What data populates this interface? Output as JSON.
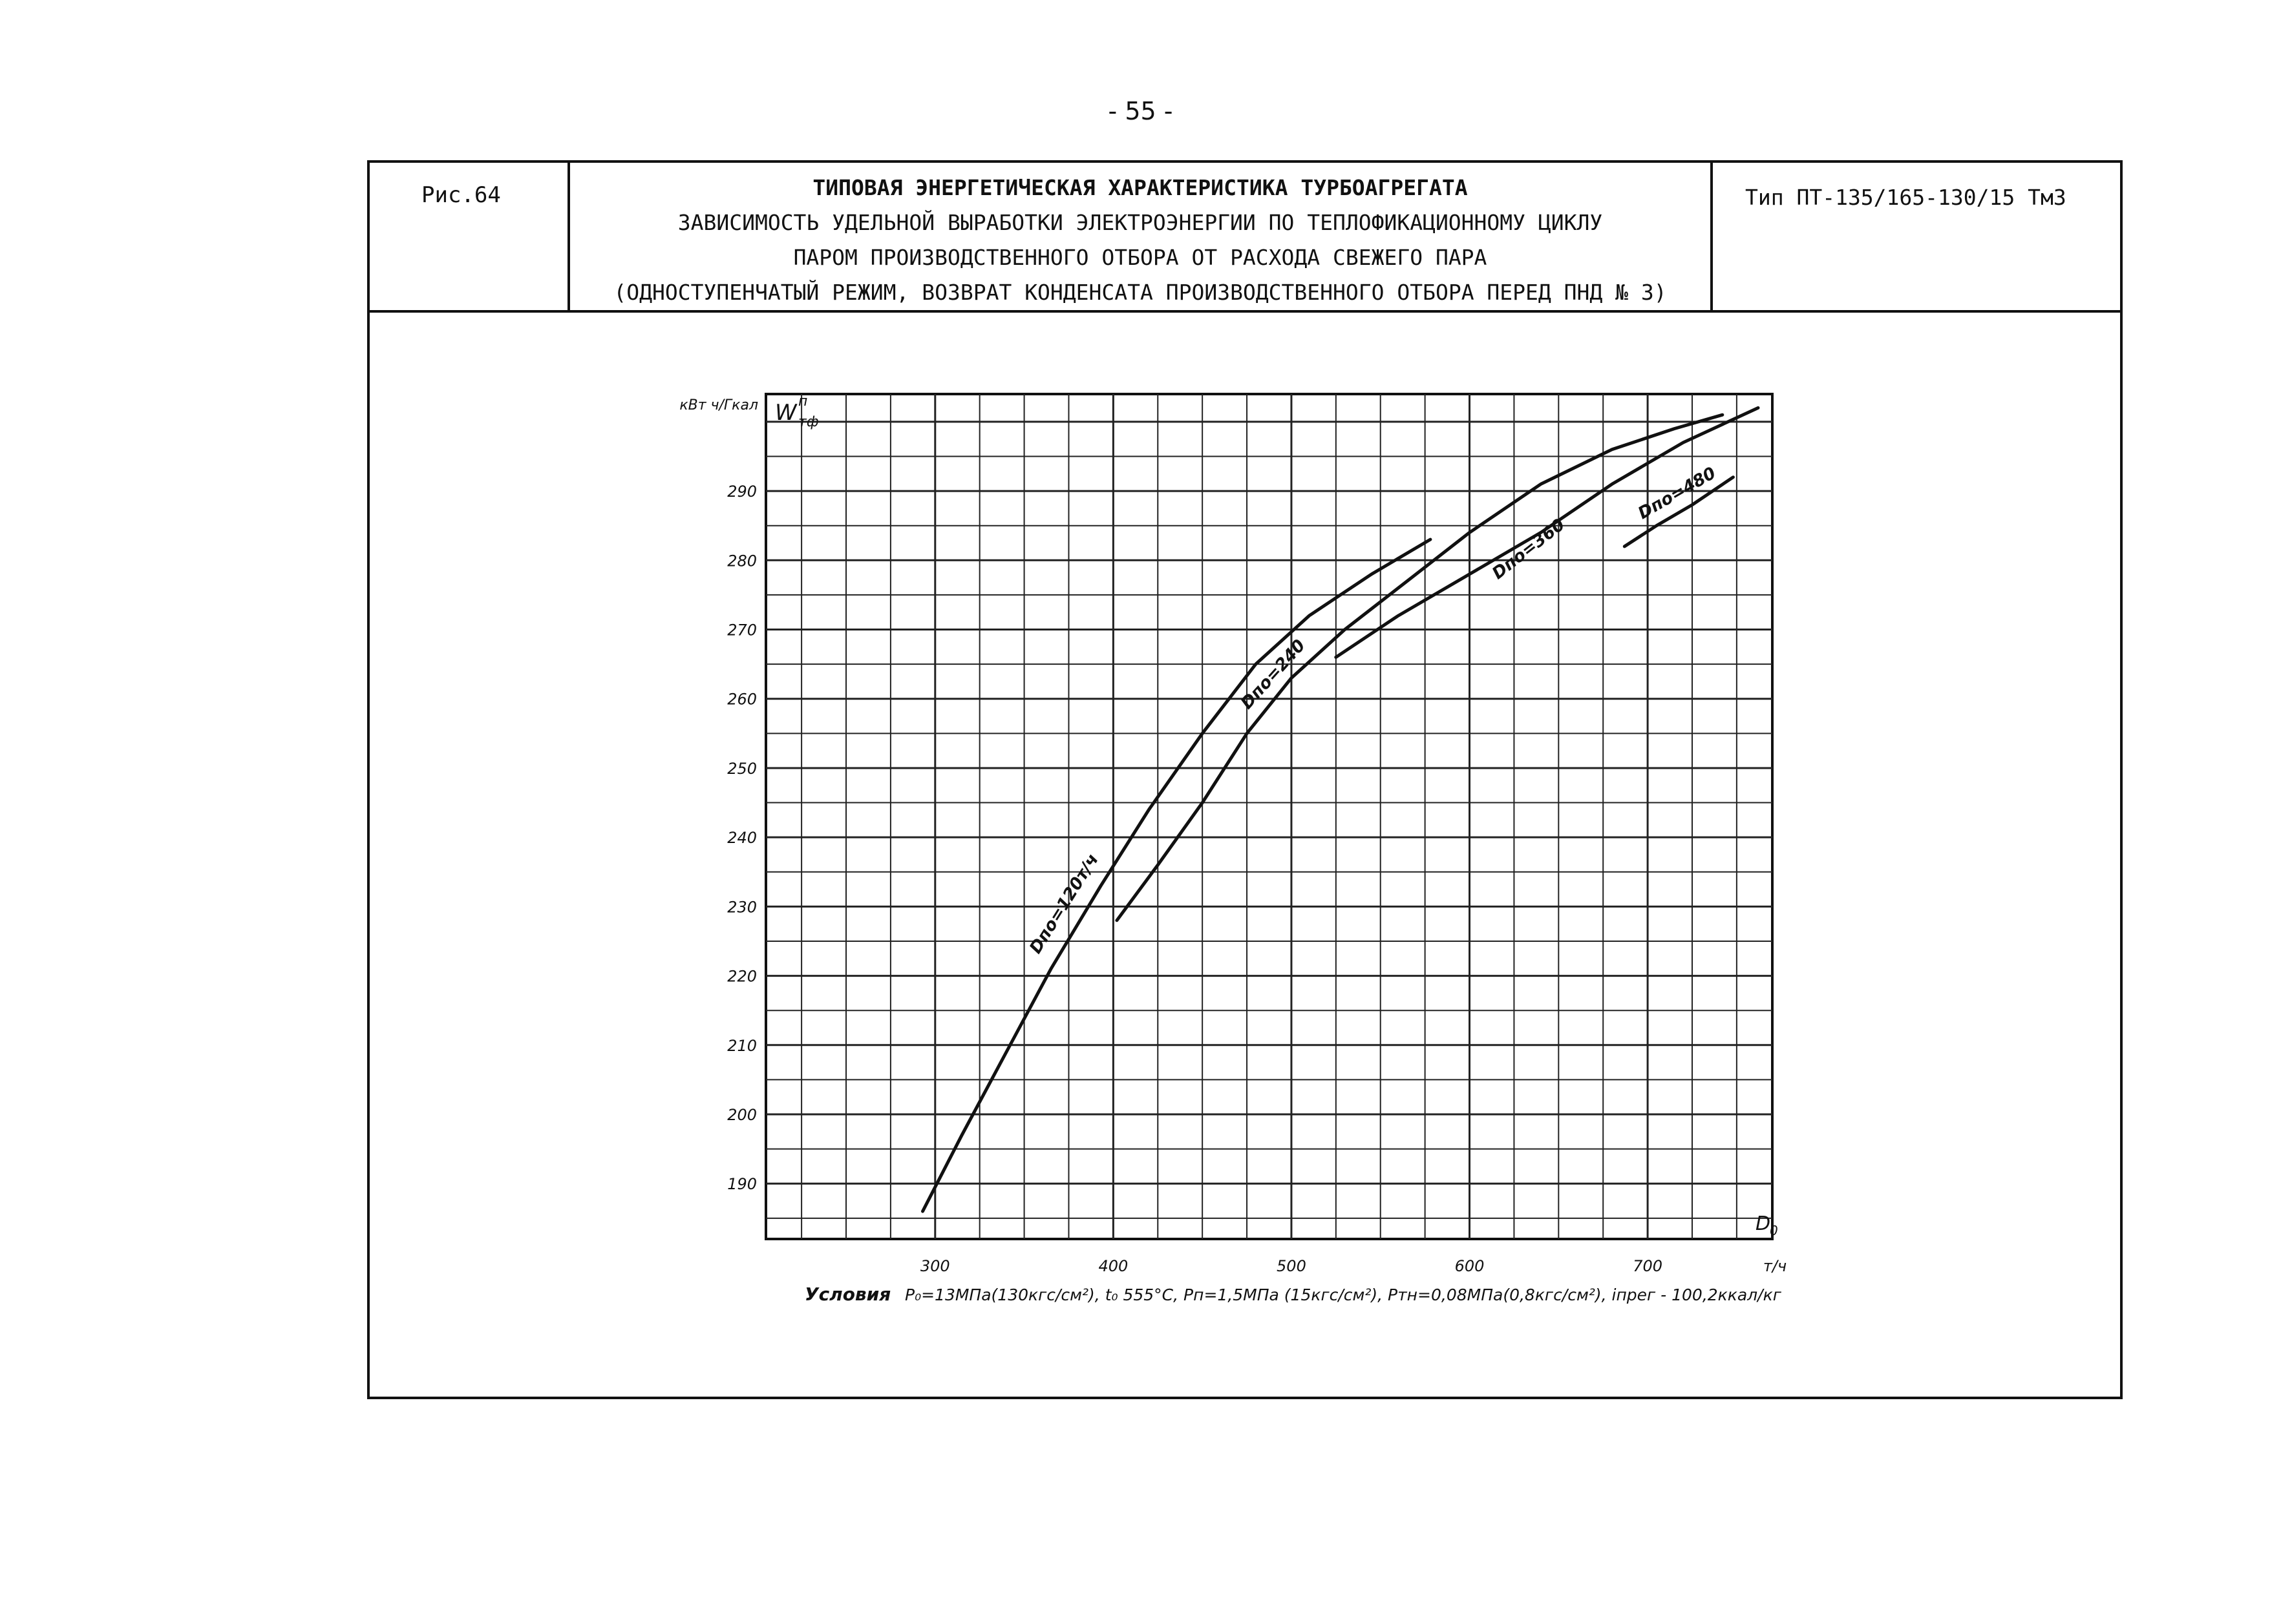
{
  "page_number": "- 55 -",
  "header": {
    "figure_label": "Рис.64",
    "title_lines": [
      "ТИПОВАЯ ЭНЕРГЕТИЧЕСКАЯ ХАРАКТЕРИСТИКА ТУРБОАГРЕГАТА",
      "ЗАВИСИМОСТЬ УДЕЛЬНОЙ ВЫРАБОТКИ ЭЛЕКТРОЭНЕРГИИ ПО ТЕПЛОФИКАЦИОННОМУ ЦИКЛУ",
      "ПАРОМ ПРОИЗВОДСТВЕННОГО ОТБОРА ОТ РАСХОДА СВЕЖЕГО ПАРА",
      "(ОДНОСТУПЕНЧАТЫЙ РЕЖИМ, ВОЗВРАТ КОНДЕНСАТА ПРОИЗВОДСТВЕННОГО ОТБОРА ПЕРЕД ПНД № 3)"
    ],
    "type_label": "Тип ПТ-135/165-130/15 ТмЗ"
  },
  "chart_data": {
    "type": "line",
    "ylabel_unit": "кВт ч/Гкал",
    "ylabel_symbol": "W",
    "ylabel_sup": "п",
    "ylabel_sub": "тф",
    "xlabel_symbol": "D",
    "xlabel_sub": "0",
    "xlabel_unit": "т/ч",
    "xlim": [
      205,
      770
    ],
    "ylim": [
      182,
      304
    ],
    "x_ticks": [
      300,
      400,
      500,
      600,
      700
    ],
    "y_ticks": [
      190,
      200,
      210,
      220,
      230,
      240,
      250,
      260,
      270,
      280,
      290
    ],
    "grid": true,
    "series": [
      {
        "name": "Dпо=120т/ч",
        "points": [
          [
            293,
            186
          ],
          [
            315,
            197
          ],
          [
            340,
            209
          ],
          [
            365,
            221
          ],
          [
            393,
            233
          ],
          [
            420,
            244
          ],
          [
            450,
            255
          ],
          [
            480,
            265
          ],
          [
            510,
            272
          ],
          [
            545,
            278
          ],
          [
            578,
            283
          ]
        ]
      },
      {
        "name": "Dпо=240",
        "points": [
          [
            402,
            228
          ],
          [
            425,
            236
          ],
          [
            450,
            245
          ],
          [
            475,
            255
          ],
          [
            500,
            263
          ],
          [
            530,
            270
          ],
          [
            565,
            277
          ],
          [
            600,
            284
          ],
          [
            640,
            291
          ],
          [
            680,
            296
          ],
          [
            715,
            299
          ],
          [
            742,
            301
          ]
        ]
      },
      {
        "name": "Dпо=360",
        "points": [
          [
            525,
            266
          ],
          [
            560,
            272
          ],
          [
            600,
            278
          ],
          [
            640,
            284
          ],
          [
            680,
            291
          ],
          [
            720,
            297
          ],
          [
            762,
            302
          ]
        ]
      },
      {
        "name": "Dпо=480",
        "points": [
          [
            687,
            282
          ],
          [
            705,
            285
          ],
          [
            725,
            288
          ],
          [
            748,
            292
          ]
        ]
      }
    ],
    "annotations": [
      {
        "text": "Dпо=120т/ч",
        "x": 375,
        "y": 230,
        "angle": -58
      },
      {
        "text": "Dпо=240",
        "x": 492,
        "y": 263,
        "angle": -48
      },
      {
        "text": "Dпо=360",
        "x": 635,
        "y": 281,
        "angle": -38
      },
      {
        "text": "Dпо=480",
        "x": 718,
        "y": 289,
        "angle": -30
      }
    ],
    "conditions_label": "Условия",
    "conditions": "P₀=13МПа(130кгс/см²), t₀ 555°С, Pп=1,5МПа (15кгс/см²), Pтн=0,08МПа(0,8кгс/см²), iпрег - 100,2ккал/кг"
  }
}
